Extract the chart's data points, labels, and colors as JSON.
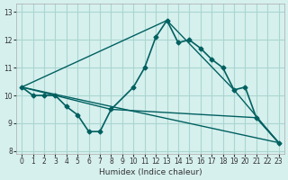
{
  "xlabel": "Humidex (Indice chaleur)",
  "bg_color": "#d6f0ee",
  "grid_color": "#aad6d0",
  "line_color": "#006060",
  "xlim": [
    -0.5,
    23.5
  ],
  "ylim": [
    7.9,
    13.3
  ],
  "yticks": [
    8,
    9,
    10,
    11,
    12,
    13
  ],
  "xticks": [
    0,
    1,
    2,
    3,
    4,
    5,
    6,
    7,
    8,
    9,
    10,
    11,
    12,
    13,
    14,
    15,
    16,
    17,
    18,
    19,
    20,
    21,
    22,
    23
  ],
  "main_x": [
    0,
    1,
    2,
    3,
    4,
    5,
    6,
    7,
    8,
    10,
    11,
    12,
    13,
    14,
    15,
    16,
    17,
    18,
    19,
    20,
    21,
    23
  ],
  "main_y": [
    10.3,
    10.0,
    10.0,
    10.0,
    9.6,
    9.3,
    8.7,
    8.7,
    9.5,
    10.3,
    11.0,
    12.1,
    12.7,
    11.9,
    12.0,
    11.7,
    11.3,
    11.0,
    10.2,
    10.3,
    9.2,
    8.3
  ],
  "line1_x": [
    0,
    23
  ],
  "line1_y": [
    10.3,
    8.3
  ],
  "line2_x": [
    0,
    13,
    19,
    23
  ],
  "line2_y": [
    10.3,
    12.7,
    10.2,
    8.3
  ],
  "line3_x": [
    0,
    8,
    21,
    23
  ],
  "line3_y": [
    10.3,
    9.5,
    9.2,
    8.3
  ]
}
